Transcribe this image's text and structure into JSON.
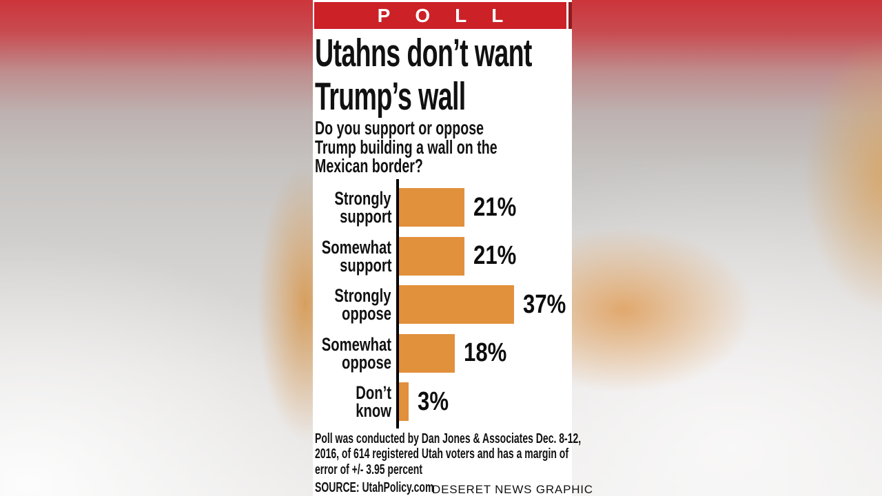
{
  "banner": {
    "title": "POLL",
    "background_color": "#cb2127",
    "edge_color": "#8e1b1f"
  },
  "headline": {
    "lines": [
      "Utahns don’t want",
      "Trump’s wall"
    ]
  },
  "question": {
    "lines": [
      "Do you support or oppose",
      "Trump building a wall on the",
      "Mexican border?"
    ]
  },
  "chart_data": {
    "type": "bar",
    "orientation": "horizontal",
    "title": "Do you support or oppose Trump building a wall on the Mexican border?",
    "categories": [
      "Strongly support",
      "Somewhat support",
      "Strongly oppose",
      "Somewhat oppose",
      "Don't know"
    ],
    "category_lines": [
      [
        "Strongly",
        "support"
      ],
      [
        "Somewhat",
        "support"
      ],
      [
        "Strongly",
        "oppose"
      ],
      [
        "Somewhat",
        "oppose"
      ],
      [
        "Don’t",
        "know"
      ]
    ],
    "values": [
      21,
      21,
      37,
      18,
      3
    ],
    "value_labels": [
      "21%",
      "21%",
      "37%",
      "18%",
      "3%"
    ],
    "unit": "percent",
    "xlim": [
      0,
      40
    ],
    "grid": false,
    "legend": null,
    "bar_color": "#e1903c",
    "axis_color": "#000000"
  },
  "footnote": {
    "lines": [
      "Poll was conducted by Dan Jones & Associates Dec. 8-12,",
      "2016, of 614 registered Utah voters and has a margin of",
      "error of +/- 3.95 percent"
    ]
  },
  "source": {
    "label": "SOURCE: UtahPolicy.com",
    "credit": "DESERET NEWS GRAPHIC"
  }
}
